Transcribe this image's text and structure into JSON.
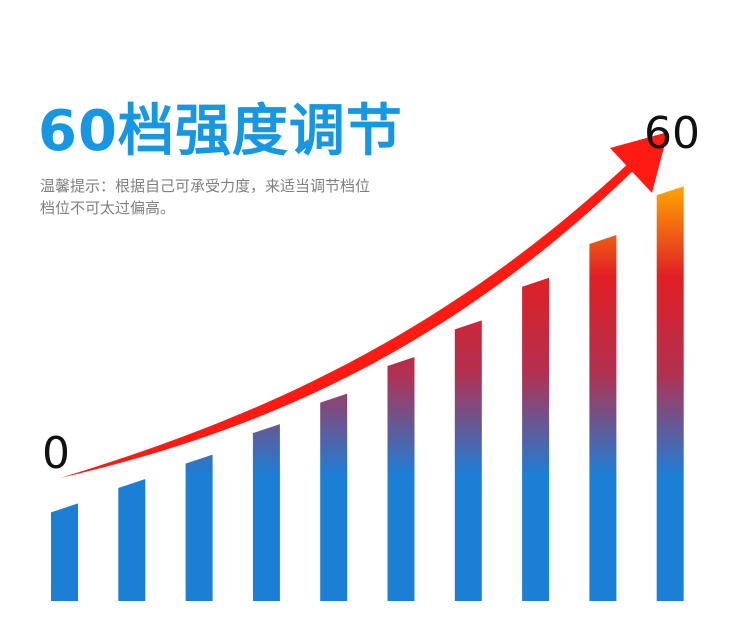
{
  "headline": "60档强度调节",
  "tip_lines": [
    "温馨提示：根据自己可承受力度，来适当调节档位",
    "档位不可太过偏高。"
  ],
  "scale": {
    "min_label": "0",
    "max_label": "60"
  },
  "levels": [
    {
      "level": 1,
      "value": 16
    },
    {
      "level": 2,
      "value": 20
    },
    {
      "level": 3,
      "value": 24
    },
    {
      "level": 4,
      "value": 29
    },
    {
      "level": 5,
      "value": 34
    },
    {
      "level": 6,
      "value": 40
    },
    {
      "level": 7,
      "value": 46
    },
    {
      "level": 8,
      "value": 53
    },
    {
      "level": 9,
      "value": 60
    },
    {
      "level": 10,
      "value": 68
    }
  ],
  "colors": {
    "headline": "#1597e4",
    "arrow": "#ff1a12",
    "bar_bottom": "#1c7fd6",
    "bar_mid": "#b3304f",
    "bar_high": "#e11f24",
    "bar_top": "#ffa800"
  }
}
